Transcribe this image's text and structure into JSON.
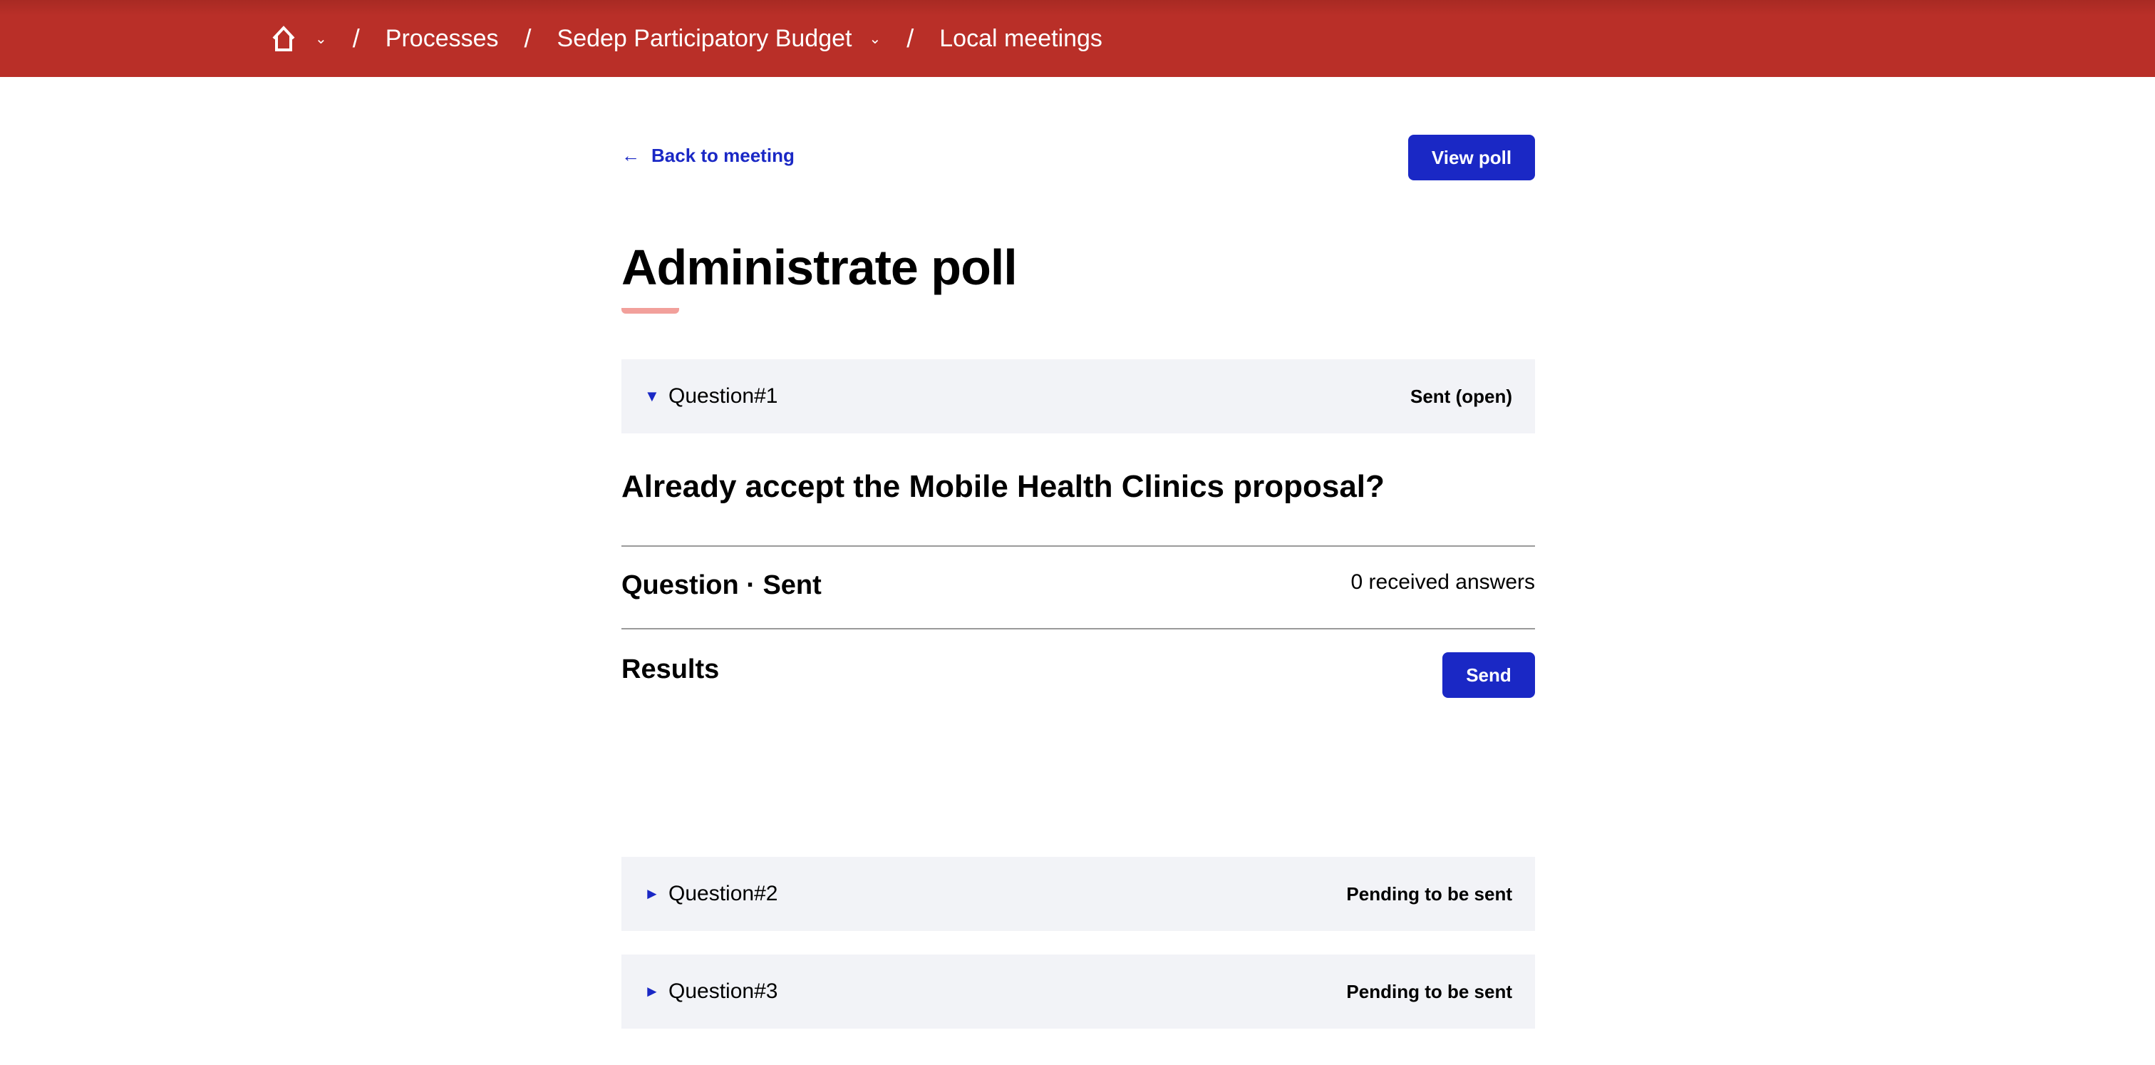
{
  "header": {
    "breadcrumbs": [
      {
        "label": "Processes"
      },
      {
        "label": "Sedep Participatory Budget"
      },
      {
        "label": "Local meetings"
      }
    ],
    "separator": "/",
    "chevron": "⌄",
    "colors": {
      "background": "#b92f28",
      "text": "#ffffff"
    }
  },
  "nav": {
    "back_label": "Back to meeting",
    "back_icon": "←",
    "view_poll_label": "View poll"
  },
  "page": {
    "title": "Administrate poll"
  },
  "questions": [
    {
      "label": "Question#1",
      "status": "Sent (open)",
      "expanded": true,
      "icon": "▼",
      "text": "Already accept the Mobile Health Clinics proposal?",
      "state_title": "Question · Sent",
      "answers": "0 received answers",
      "results_title": "Results",
      "send_label": "Send"
    },
    {
      "label": "Question#2",
      "status": "Pending to be sent",
      "expanded": false,
      "icon": "►"
    },
    {
      "label": "Question#3",
      "status": "Pending to be sent",
      "expanded": false,
      "icon": "►"
    }
  ],
  "colors": {
    "accent": "#1a28c5",
    "panel": "#f2f3f7",
    "title_underline": "#f2a09b"
  }
}
